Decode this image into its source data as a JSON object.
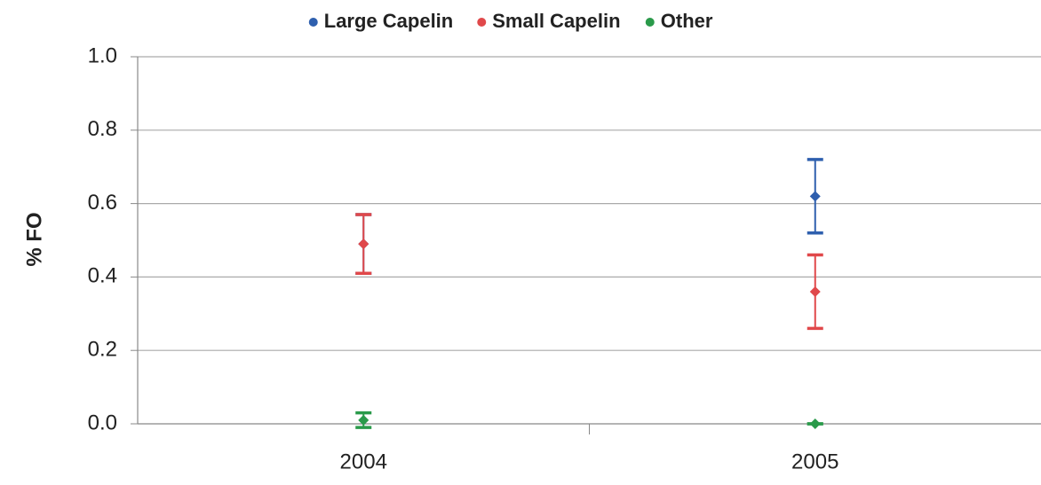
{
  "chart_data": {
    "type": "errorbar",
    "y_label": "% FO",
    "categories": [
      "2004",
      "2005"
    ],
    "series": [
      {
        "name": "Large Capelin",
        "color": "#2e5fae",
        "values": [
          0.49,
          0.62
        ],
        "errors": [
          0.08,
          0.1
        ]
      },
      {
        "name": "Small Capelin",
        "color": "#e0484a",
        "values": [
          0.49,
          0.36
        ],
        "errors": [
          0.08,
          0.1
        ]
      },
      {
        "name": "Other",
        "color": "#2a9a4a",
        "values": [
          0.01,
          0.0
        ],
        "errors": [
          0.02,
          0.0
        ]
      }
    ],
    "ylim": [
      0,
      1.0
    ],
    "yticks": [
      {
        "value": 0,
        "label": "0.0"
      },
      {
        "value": 0.2,
        "label": "0.2"
      },
      {
        "value": 0.4,
        "label": "0.4"
      },
      {
        "value": 0.6,
        "label": "0.6"
      },
      {
        "value": 0.8,
        "label": "0.8"
      },
      {
        "value": 1.0,
        "label": "1.0"
      }
    ],
    "grid": true,
    "legend": "top"
  }
}
